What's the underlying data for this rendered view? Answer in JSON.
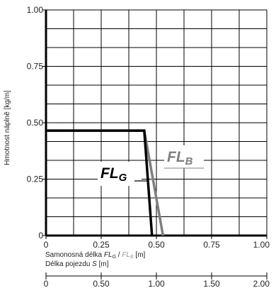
{
  "chart_data": {
    "type": "line",
    "ylabel": "Hmotnost náplně [kg/m]",
    "xlabel": {
      "prefix": "Samonosná délka ",
      "fl_g": "FL",
      "fl_g_sub": "G",
      "slash": " / ",
      "fl_b": "FL",
      "fl_b_sub": "B",
      "unit": " [m]"
    },
    "xlabel2": {
      "prefix": "Délka pojezdu ",
      "var": "S",
      "unit": " [m]"
    },
    "xlim": [
      0,
      1.0
    ],
    "ylim": [
      0,
      1.0
    ],
    "x2lim": [
      0,
      2.0
    ],
    "grid": true,
    "x_ticks": [
      {
        "value": 0,
        "label": "0"
      },
      {
        "value": 0.25,
        "label": "0.25"
      },
      {
        "value": 0.5,
        "label": "0.50"
      },
      {
        "value": 0.75,
        "label": "0.75"
      },
      {
        "value": 1.0,
        "label": "1.00"
      }
    ],
    "y_ticks": [
      {
        "value": 0,
        "label": "0"
      },
      {
        "value": 0.25,
        "label": "0.25"
      },
      {
        "value": 0.5,
        "label": "0.50"
      },
      {
        "value": 0.75,
        "label": "0.75"
      },
      {
        "value": 1.0,
        "label": "1.00"
      }
    ],
    "x2_ticks": [
      {
        "value": 0,
        "label": "0"
      },
      {
        "value": 0.5,
        "label": "0.50"
      },
      {
        "value": 1.0,
        "label": "1.00"
      },
      {
        "value": 1.5,
        "label": "1.50"
      },
      {
        "value": 2.0,
        "label": "2.00"
      }
    ],
    "series": [
      {
        "name": "FL_G",
        "label_main": "FL",
        "label_sub": "G",
        "color": "#000000",
        "x": [
          0,
          0.445,
          0.48
        ],
        "y": [
          0.465,
          0.465,
          0
        ]
      },
      {
        "name": "FL_B",
        "label_main": "FL",
        "label_sub": "B",
        "color": "#7f7f7f",
        "x": [
          0,
          0.445,
          0.53
        ],
        "y": [
          0.465,
          0.465,
          0
        ]
      }
    ]
  }
}
